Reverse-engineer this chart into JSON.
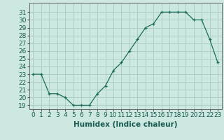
{
  "x": [
    0,
    1,
    2,
    3,
    4,
    5,
    6,
    7,
    8,
    9,
    10,
    11,
    12,
    13,
    14,
    15,
    16,
    17,
    18,
    19,
    20,
    21,
    22,
    23
  ],
  "y": [
    23,
    23,
    20.5,
    20.5,
    20,
    19,
    19,
    19,
    20.5,
    21.5,
    23.5,
    24.5,
    26,
    27.5,
    29,
    29.5,
    31,
    31,
    31,
    31,
    30,
    30,
    27.5,
    24.5
  ],
  "line_color": "#1a6b5a",
  "marker": "+",
  "bg_color": "#cce8e0",
  "grid_color": "#aacfc7",
  "xlabel": "Humidex (Indice chaleur)",
  "ylabel_ticks": [
    19,
    20,
    21,
    22,
    23,
    24,
    25,
    26,
    27,
    28,
    29,
    30,
    31
  ],
  "xlim": [
    -0.5,
    23.5
  ],
  "ylim": [
    18.5,
    32.2
  ],
  "xlabel_fontsize": 7.5,
  "tick_fontsize": 6.5
}
